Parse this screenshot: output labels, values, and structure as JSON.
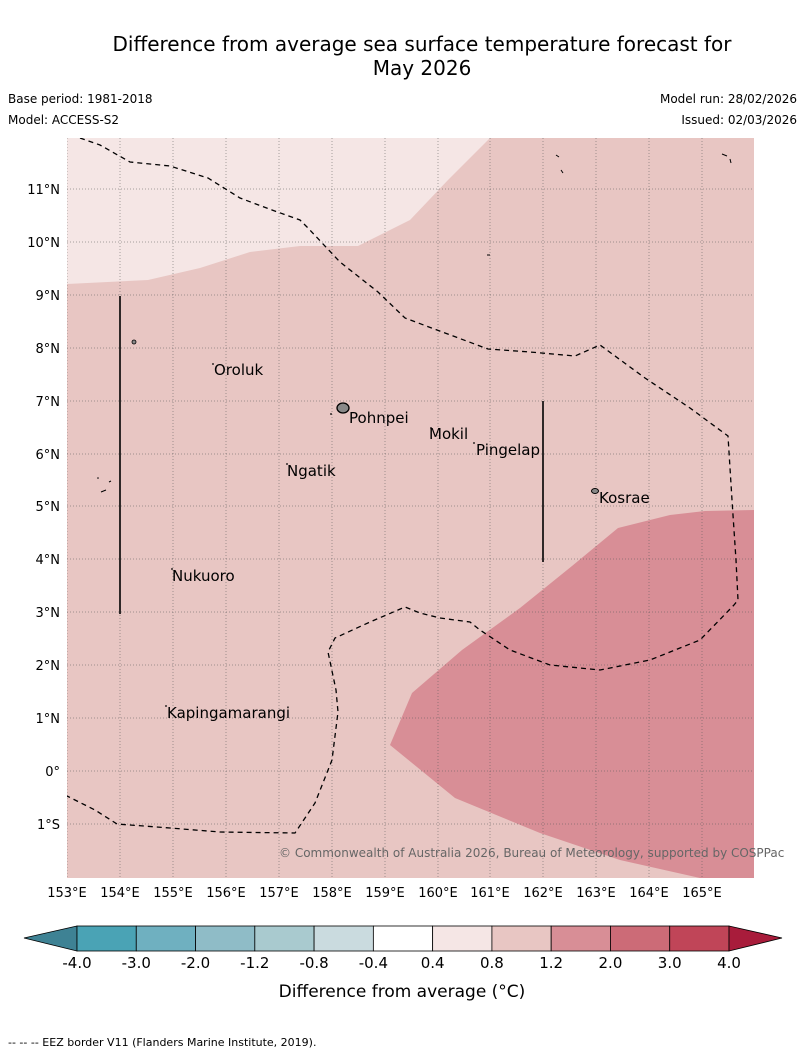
{
  "title": {
    "line1": "Difference from average sea surface temperature forecast for",
    "line2": "May 2026"
  },
  "meta": {
    "base_period": "Base period: 1981-2018",
    "model": "Model: ACCESS-S2",
    "model_run": "Model run: 28/02/2026",
    "issued": "Issued: 02/03/2026"
  },
  "colors": {
    "ocean_base": "#e8c6c3",
    "ocean_light": "#f5e6e5",
    "ocean_warm": "#d88e96",
    "eez_line": "#000000",
    "copyright_text": "#666666"
  },
  "axes": {
    "lon_labels": [
      "153°E",
      "154°E",
      "155°E",
      "156°E",
      "157°E",
      "158°E",
      "159°E",
      "160°E",
      "161°E",
      "162°E",
      "163°E",
      "164°E",
      "165°E"
    ],
    "lat_labels": [
      "11°N",
      "10°N",
      "9°N",
      "8°N",
      "7°N",
      "6°N",
      "5°N",
      "4°N",
      "3°N",
      "2°N",
      "1°N",
      "0°",
      "1°S"
    ]
  },
  "places": [
    {
      "name": "Oroluk"
    },
    {
      "name": "Pohnpei"
    },
    {
      "name": "Mokil"
    },
    {
      "name": "Pingelap"
    },
    {
      "name": "Ngatik"
    },
    {
      "name": "Kosrae"
    },
    {
      "name": "Nukuoro"
    },
    {
      "name": "Kapingamarangi"
    }
  ],
  "copyright": "© Commonwealth of Australia 2026, Bureau of Meteorology, supported by COSPPac",
  "colorbar": {
    "title": "Difference from average (°C)",
    "tick_labels": [
      "-4.0",
      "-3.0",
      "-2.0",
      "-1.2",
      "-0.8",
      "-0.4",
      "0.4",
      "0.8",
      "1.2",
      "2.0",
      "3.0",
      "4.0"
    ],
    "bins": [
      {
        "color": "#4aa3b5"
      },
      {
        "color": "#6fb0c0"
      },
      {
        "color": "#8fbcc7"
      },
      {
        "color": "#a9cacf"
      },
      {
        "color": "#cadbdf"
      },
      {
        "color": "#ffffff"
      },
      {
        "color": "#f5e6e5"
      },
      {
        "color": "#e8c6c3"
      },
      {
        "color": "#d88e96"
      },
      {
        "color": "#cc6b77"
      },
      {
        "color": "#c04558"
      }
    ],
    "min_cap_color": "#3e8294",
    "max_cap_color": "#a81c3b"
  },
  "footer": "--  --  -- EEZ border V11 (Flanders Marine Institute, 2019)."
}
